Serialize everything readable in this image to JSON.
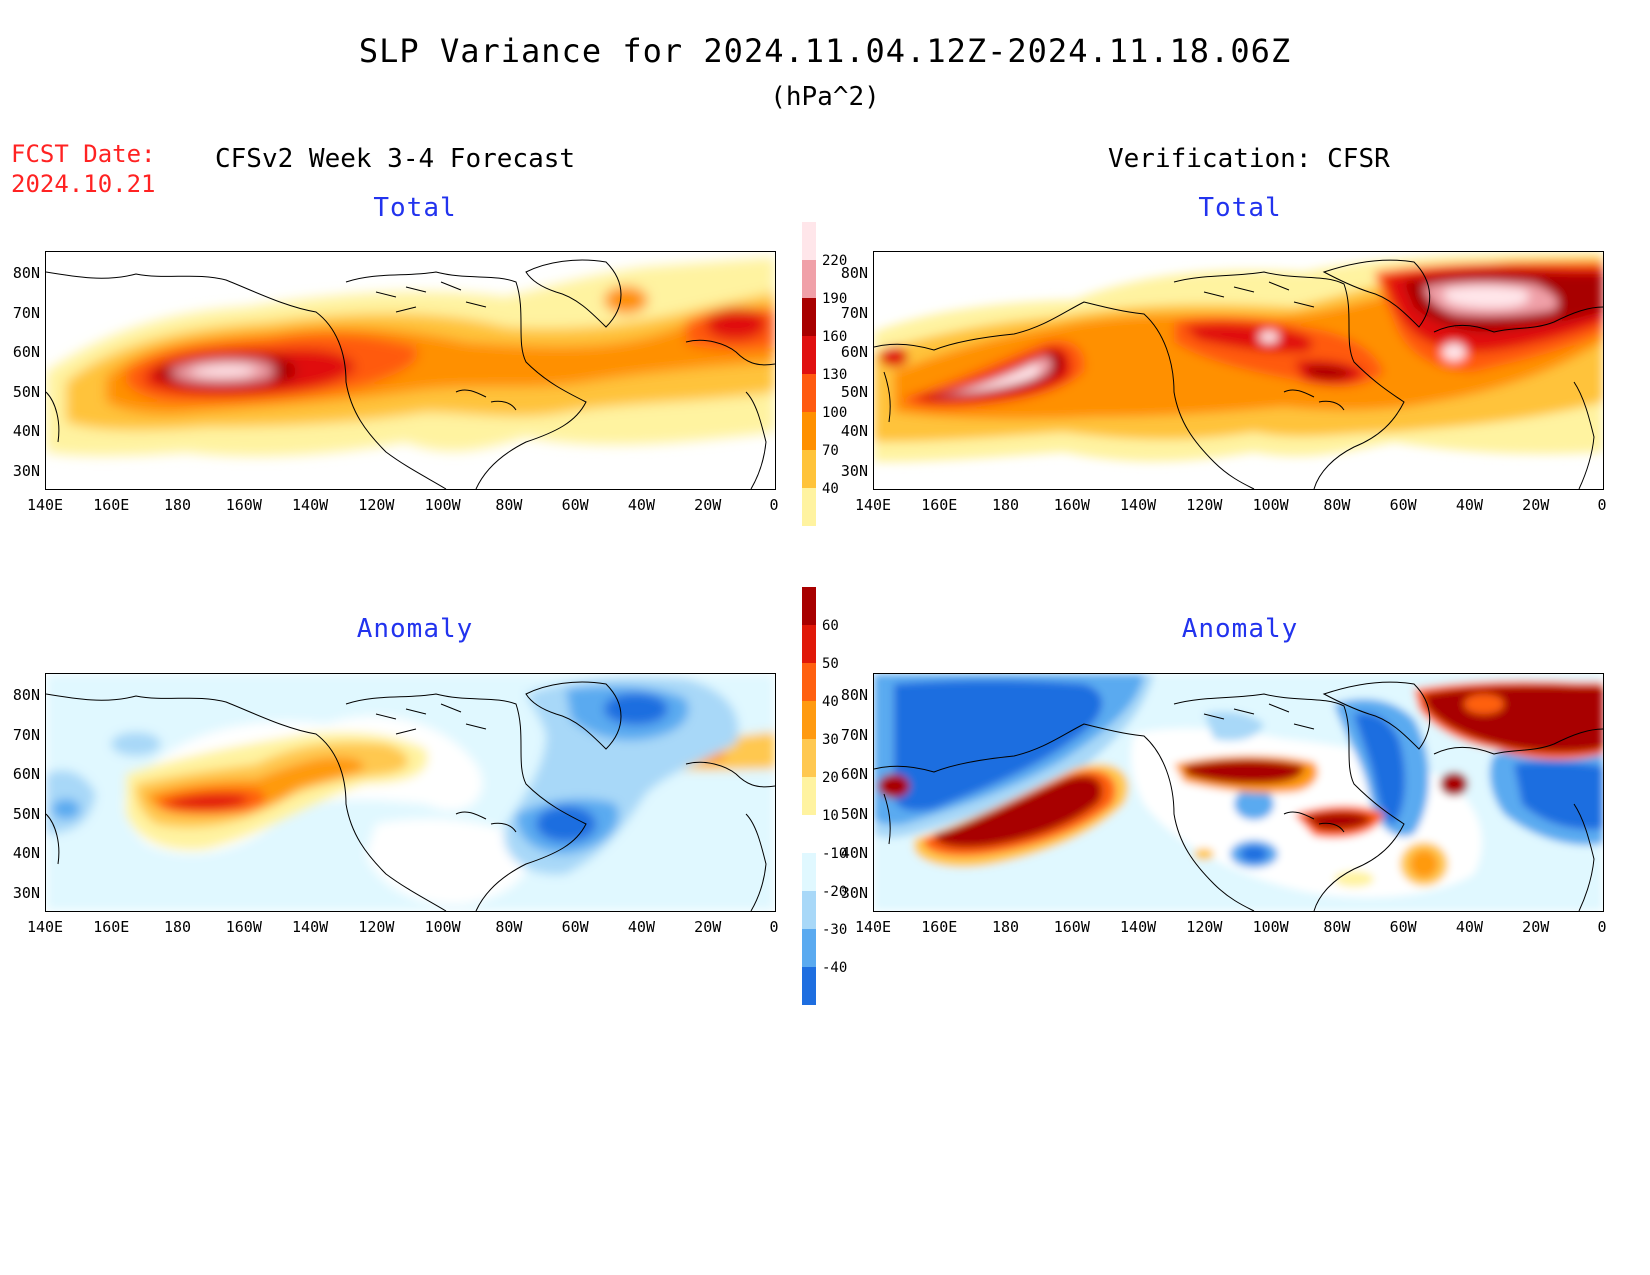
{
  "title": "SLP Variance for 2024.11.04.12Z-2024.11.18.06Z",
  "units": "(hPa^2)",
  "fcst_label": "FCST Date:",
  "fcst_date": "2024.10.21",
  "left_header": "CFSv2 Week 3-4 Forecast",
  "right_header": "Verification: CFSR",
  "panels": {
    "forecast_total": {
      "title": "Total"
    },
    "verif_total": {
      "title": "Total"
    },
    "forecast_anomaly": {
      "title": "Anomaly"
    },
    "verif_anomaly": {
      "title": "Anomaly"
    }
  },
  "lat_ticks": [
    "80N",
    "70N",
    "60N",
    "50N",
    "40N",
    "30N"
  ],
  "lon_ticks": [
    "140E",
    "160E",
    "180",
    "160W",
    "140W",
    "120W",
    "100W",
    "80W",
    "60W",
    "40W",
    "20W",
    "0"
  ],
  "total_colorbar": {
    "levels": [
      "40",
      "70",
      "100",
      "130",
      "160",
      "190",
      "220"
    ],
    "colors": [
      "#fff3a0",
      "#ffc33a",
      "#ff9000",
      "#ff5a10",
      "#e01010",
      "#a80000",
      "#f0a0a8",
      "#ffe6ea"
    ]
  },
  "anomaly_colorbar": {
    "levels": [
      "60",
      "50",
      "40",
      "30",
      "20",
      "10",
      "-10",
      "-20",
      "-30",
      "-40"
    ],
    "colors": [
      "#a80000",
      "#e01808",
      "#ff6010",
      "#ff9a10",
      "#ffc850",
      "#fff3a0",
      "#ffffff",
      "#e0f8ff",
      "#a8d8f8",
      "#5aaaf0",
      "#1e6ee0"
    ]
  },
  "colors": {
    "title_text": "#000000",
    "panel_title": "#2233ee",
    "fcst_date": "#ff2222"
  }
}
